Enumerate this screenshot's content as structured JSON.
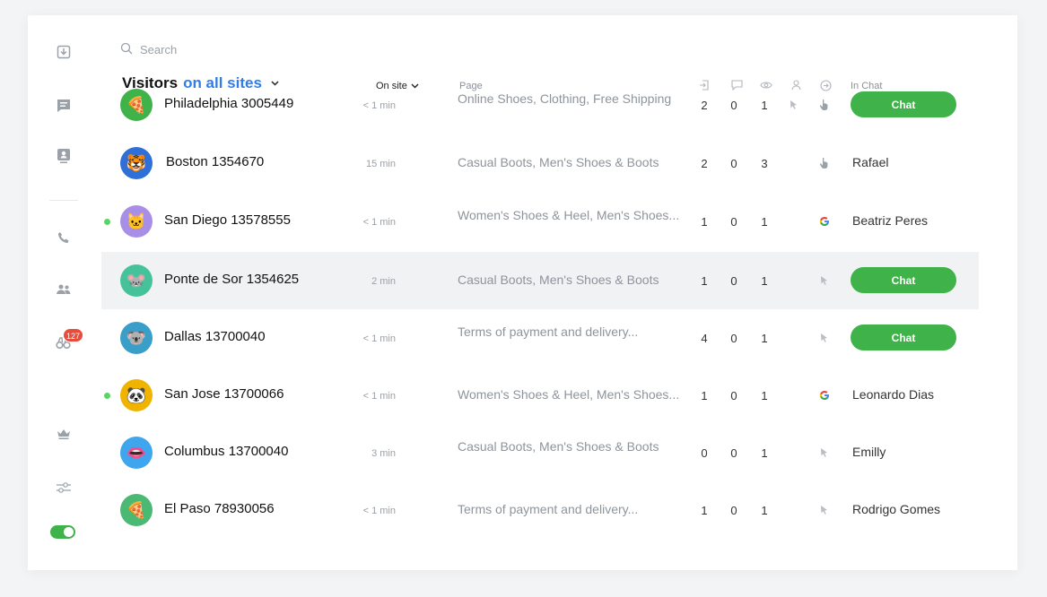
{
  "search": {
    "placeholder": "Search",
    "value": ""
  },
  "sidebar": {
    "badge_count": "127",
    "items": [
      {
        "icon": "inbox-icon"
      },
      {
        "icon": "message-icon"
      },
      {
        "icon": "monitor-visitor-icon"
      },
      {
        "icon": "phone-icon"
      },
      {
        "icon": "team-icon"
      },
      {
        "icon": "binoculars-icon"
      },
      {
        "icon": "crown-icon"
      },
      {
        "icon": "settings-sliders-icon"
      },
      {
        "icon": "toggle-icon"
      }
    ]
  },
  "header": {
    "title_prefix": "Visitors",
    "title_accent": "on all sites",
    "onsite_label": "On site",
    "page_label": "Page",
    "inchat_label": "In Chat",
    "column_icons": [
      "entry-icon",
      "chat-bubble-icon",
      "eye-icon",
      "user-icon",
      "arrow-circle-icon"
    ]
  },
  "colors": {
    "accent": "#2f7ee8",
    "green": "#3fb24a",
    "badge": "#ea4c3b",
    "online": "#5cd368"
  },
  "visitors": [
    {
      "name": "Philadelphia 3005449",
      "time": "< 1 min",
      "page": "Online Shoes, Clothing, Free Shipping",
      "c1": "2",
      "c2": "0",
      "c3": "1",
      "online": false,
      "avatar": "🍕",
      "avatar_color": "#3fb24a",
      "cursor": true,
      "hand": true,
      "google": false,
      "chat": "Chat",
      "agent": ""
    },
    {
      "name": "Boston 1354670",
      "time": "15 min",
      "page": "Casual Boots, Men's Shoes & Boots",
      "c1": "2",
      "c2": "0",
      "c3": "3",
      "online": false,
      "avatar": "🐯",
      "avatar_color": "#2f6fd8",
      "cursor": false,
      "hand": true,
      "google": false,
      "chat": "",
      "agent": "Rafael"
    },
    {
      "name": "San Diego 13578555",
      "time": "< 1 min",
      "page": "Women's Shoes & Heel, Men's Shoes...",
      "c1": "1",
      "c2": "0",
      "c3": "1",
      "online": true,
      "avatar": "🐱",
      "avatar_color": "#a98ee8",
      "cursor": false,
      "hand": false,
      "google": true,
      "chat": "",
      "agent": "Beatriz Peres"
    },
    {
      "name": "Ponte de Sor 1354625",
      "time": "2 min",
      "page": "Casual Boots, Men's Shoes & Boots",
      "c1": "1",
      "c2": "0",
      "c3": "1",
      "online": false,
      "avatar": "🐭",
      "avatar_color": "#46c29a",
      "cursor": false,
      "hand": true,
      "google": false,
      "chat": "Chat",
      "agent": "",
      "highlight": true
    },
    {
      "name": "Dallas 13700040",
      "time": "< 1 min",
      "page": "Terms of payment and delivery...",
      "c1": "4",
      "c2": "0",
      "c3": "1",
      "online": false,
      "avatar": "🐨",
      "avatar_color": "#3a9fc8",
      "cursor": false,
      "hand": true,
      "google": false,
      "chat": "Chat",
      "agent": ""
    },
    {
      "name": "San Jose 13700066",
      "time": "< 1 min",
      "page": "Women's Shoes & Heel, Men's Shoes...",
      "c1": "1",
      "c2": "0",
      "c3": "1",
      "online": true,
      "avatar": "🐼",
      "avatar_color": "#f0b400",
      "cursor": false,
      "hand": false,
      "google": true,
      "chat": "",
      "agent": "Leonardo Dias"
    },
    {
      "name": "Columbus 13700040",
      "time": "3 min",
      "page": "Casual Boots, Men's Shoes & Boots",
      "c1": "0",
      "c2": "0",
      "c3": "1",
      "online": false,
      "avatar": "👄",
      "avatar_color": "#3fa6ee",
      "cursor": false,
      "hand": true,
      "google": false,
      "chat": "",
      "agent": "Emilly"
    },
    {
      "name": "El Paso 78930056",
      "time": "< 1 min",
      "page": "Terms of payment and delivery...",
      "c1": "1",
      "c2": "0",
      "c3": "1",
      "online": false,
      "avatar": "🍕",
      "avatar_color": "#4bb873",
      "cursor": false,
      "hand": true,
      "google": false,
      "chat": "",
      "agent": "Rodrigo Gomes"
    }
  ]
}
